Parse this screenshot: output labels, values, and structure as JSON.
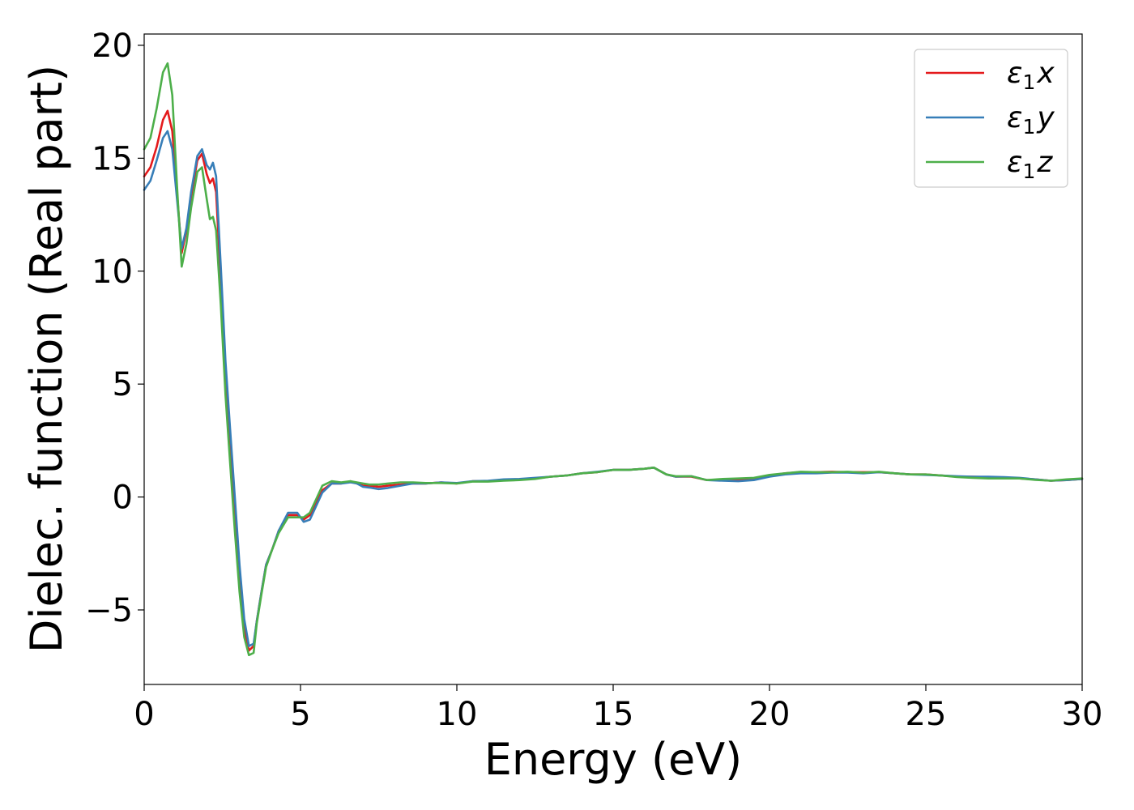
{
  "chart_data": {
    "type": "line",
    "title": "",
    "xlabel": "Energy (eV)",
    "ylabel": "Dielec. function (Real part)",
    "xlim": [
      0,
      30
    ],
    "ylim": [
      -8.3,
      20.5
    ],
    "xticks": [
      0,
      5,
      10,
      15,
      20,
      25,
      30
    ],
    "xtick_labels": [
      "0",
      "5",
      "10",
      "15",
      "20",
      "25",
      "30"
    ],
    "yticks": [
      -5,
      0,
      5,
      10,
      15,
      20
    ],
    "ytick_labels": [
      "−5",
      "0",
      "5",
      "10",
      "15",
      "20"
    ],
    "grid": false,
    "legend_position": "top-right",
    "series": [
      {
        "name": "ε₁x",
        "legend_main": "ε",
        "legend_sub": "1",
        "legend_var": "x",
        "color": "#e41a1c",
        "x": [
          0,
          0.2,
          0.4,
          0.6,
          0.75,
          0.9,
          1.05,
          1.2,
          1.35,
          1.5,
          1.7,
          1.85,
          2.0,
          2.1,
          2.2,
          2.3,
          2.45,
          2.6,
          2.75,
          2.9,
          3.05,
          3.2,
          3.35,
          3.5,
          3.6,
          3.75,
          3.9,
          4.1,
          4.3,
          4.6,
          4.9,
          5.1,
          5.3,
          5.5,
          5.7,
          6.0,
          6.3,
          6.6,
          6.8,
          7.0,
          7.2,
          7.5,
          7.8,
          8.2,
          8.6,
          9.0,
          9.5,
          10.0,
          10.5,
          11.0,
          11.5,
          12.0,
          12.5,
          13.0,
          13.5,
          14.0,
          14.5,
          15.0,
          15.5,
          16.0,
          16.3,
          16.7,
          17.0,
          17.5,
          18.0,
          18.5,
          19.0,
          19.5,
          20.0,
          20.5,
          21.0,
          21.5,
          22.0,
          22.5,
          23.0,
          23.5,
          24.0,
          24.5,
          25.0,
          25.5,
          26.0,
          26.5,
          27.0,
          27.5,
          28.0,
          28.5,
          29.0,
          29.5,
          30.0
        ],
        "y": [
          14.2,
          14.6,
          15.5,
          16.7,
          17.1,
          16.2,
          13.5,
          10.8,
          11.8,
          13.3,
          14.9,
          15.2,
          14.3,
          13.9,
          14.1,
          13.5,
          9.5,
          5.5,
          2.5,
          -0.5,
          -3.5,
          -5.8,
          -6.8,
          -6.6,
          -5.5,
          -4.2,
          -3.0,
          -2.3,
          -1.5,
          -0.8,
          -0.8,
          -1.0,
          -0.8,
          -0.3,
          0.3,
          0.6,
          0.6,
          0.7,
          0.6,
          0.5,
          0.5,
          0.45,
          0.5,
          0.55,
          0.6,
          0.6,
          0.65,
          0.6,
          0.7,
          0.7,
          0.75,
          0.78,
          0.82,
          0.9,
          0.95,
          1.05,
          1.1,
          1.2,
          1.2,
          1.25,
          1.3,
          1.0,
          0.9,
          0.9,
          0.75,
          0.75,
          0.78,
          0.8,
          0.95,
          1.05,
          1.1,
          1.1,
          1.12,
          1.1,
          1.1,
          1.1,
          1.05,
          1.0,
          1.0,
          0.95,
          0.9,
          0.9,
          0.88,
          0.85,
          0.82,
          0.78,
          0.72,
          0.75,
          0.8
        ]
      },
      {
        "name": "ε₁y",
        "legend_main": "ε",
        "legend_sub": "1",
        "legend_var": "y",
        "color": "#377eb8",
        "x": [
          0,
          0.2,
          0.4,
          0.6,
          0.75,
          0.9,
          1.05,
          1.2,
          1.35,
          1.5,
          1.7,
          1.85,
          2.0,
          2.1,
          2.2,
          2.3,
          2.45,
          2.6,
          2.75,
          2.9,
          3.05,
          3.2,
          3.35,
          3.5,
          3.6,
          3.75,
          3.9,
          4.1,
          4.3,
          4.6,
          4.9,
          5.1,
          5.3,
          5.5,
          5.7,
          6.0,
          6.3,
          6.6,
          6.8,
          7.0,
          7.2,
          7.5,
          7.8,
          8.2,
          8.6,
          9.0,
          9.5,
          10.0,
          10.5,
          11.0,
          11.5,
          12.0,
          12.5,
          13.0,
          13.5,
          14.0,
          14.5,
          15.0,
          15.5,
          16.0,
          16.3,
          16.7,
          17.0,
          17.5,
          18.0,
          18.5,
          19.0,
          19.5,
          20.0,
          20.5,
          21.0,
          21.5,
          22.0,
          22.5,
          23.0,
          23.5,
          24.0,
          24.5,
          25.0,
          25.5,
          26.0,
          26.5,
          27.0,
          27.5,
          28.0,
          28.5,
          29.0,
          29.5,
          30.0
        ],
        "y": [
          13.6,
          14.0,
          14.9,
          15.9,
          16.2,
          15.4,
          13.2,
          11.0,
          11.9,
          13.5,
          15.1,
          15.4,
          14.7,
          14.5,
          14.8,
          14.2,
          10.2,
          6.0,
          3.0,
          0.0,
          -3.0,
          -5.4,
          -6.6,
          -6.5,
          -5.5,
          -4.2,
          -3.0,
          -2.3,
          -1.5,
          -0.7,
          -0.7,
          -1.1,
          -1.0,
          -0.4,
          0.2,
          0.6,
          0.6,
          0.65,
          0.6,
          0.45,
          0.42,
          0.35,
          0.4,
          0.5,
          0.6,
          0.6,
          0.65,
          0.62,
          0.7,
          0.72,
          0.78,
          0.8,
          0.85,
          0.9,
          0.95,
          1.05,
          1.12,
          1.2,
          1.2,
          1.25,
          1.3,
          1.0,
          0.9,
          0.92,
          0.75,
          0.72,
          0.7,
          0.75,
          0.9,
          1.0,
          1.05,
          1.05,
          1.08,
          1.08,
          1.05,
          1.1,
          1.05,
          1.0,
          0.98,
          0.95,
          0.92,
          0.9,
          0.9,
          0.88,
          0.85,
          0.78,
          0.72,
          0.75,
          0.8
        ]
      },
      {
        "name": "ε₁z",
        "legend_main": "ε",
        "legend_sub": "1",
        "legend_var": "z",
        "color": "#4daf4a",
        "x": [
          0,
          0.2,
          0.4,
          0.6,
          0.75,
          0.9,
          1.05,
          1.2,
          1.35,
          1.5,
          1.7,
          1.85,
          2.0,
          2.1,
          2.2,
          2.3,
          2.45,
          2.6,
          2.75,
          2.9,
          3.05,
          3.2,
          3.35,
          3.5,
          3.6,
          3.75,
          3.9,
          4.1,
          4.3,
          4.6,
          4.9,
          5.1,
          5.3,
          5.5,
          5.7,
          6.0,
          6.3,
          6.6,
          6.8,
          7.0,
          7.2,
          7.5,
          7.8,
          8.2,
          8.6,
          9.0,
          9.5,
          10.0,
          10.5,
          11.0,
          11.5,
          12.0,
          12.5,
          13.0,
          13.5,
          14.0,
          14.5,
          15.0,
          15.5,
          16.0,
          16.3,
          16.7,
          17.0,
          17.5,
          18.0,
          18.5,
          19.0,
          19.5,
          20.0,
          20.5,
          21.0,
          21.5,
          22.0,
          22.5,
          23.0,
          23.5,
          24.0,
          24.5,
          25.0,
          25.5,
          26.0,
          26.5,
          27.0,
          27.5,
          28.0,
          28.5,
          29.0,
          29.5,
          30.0
        ],
        "y": [
          15.4,
          15.9,
          17.2,
          18.8,
          19.2,
          17.8,
          13.8,
          10.2,
          11.2,
          12.8,
          14.4,
          14.6,
          13.2,
          12.3,
          12.4,
          11.8,
          8.5,
          4.5,
          1.5,
          -1.5,
          -4.2,
          -6.2,
          -7.0,
          -6.9,
          -5.6,
          -4.3,
          -3.1,
          -2.3,
          -1.6,
          -0.9,
          -0.9,
          -0.9,
          -0.7,
          -0.1,
          0.5,
          0.7,
          0.65,
          0.7,
          0.65,
          0.6,
          0.55,
          0.55,
          0.6,
          0.65,
          0.65,
          0.62,
          0.62,
          0.6,
          0.68,
          0.68,
          0.72,
          0.75,
          0.8,
          0.9,
          0.95,
          1.05,
          1.1,
          1.2,
          1.2,
          1.25,
          1.3,
          1.0,
          0.92,
          0.92,
          0.75,
          0.8,
          0.82,
          0.85,
          0.98,
          1.05,
          1.12,
          1.1,
          1.1,
          1.12,
          1.08,
          1.12,
          1.05,
          1.0,
          1.0,
          0.95,
          0.88,
          0.85,
          0.82,
          0.82,
          0.82,
          0.76,
          0.72,
          0.78,
          0.82
        ]
      }
    ]
  }
}
